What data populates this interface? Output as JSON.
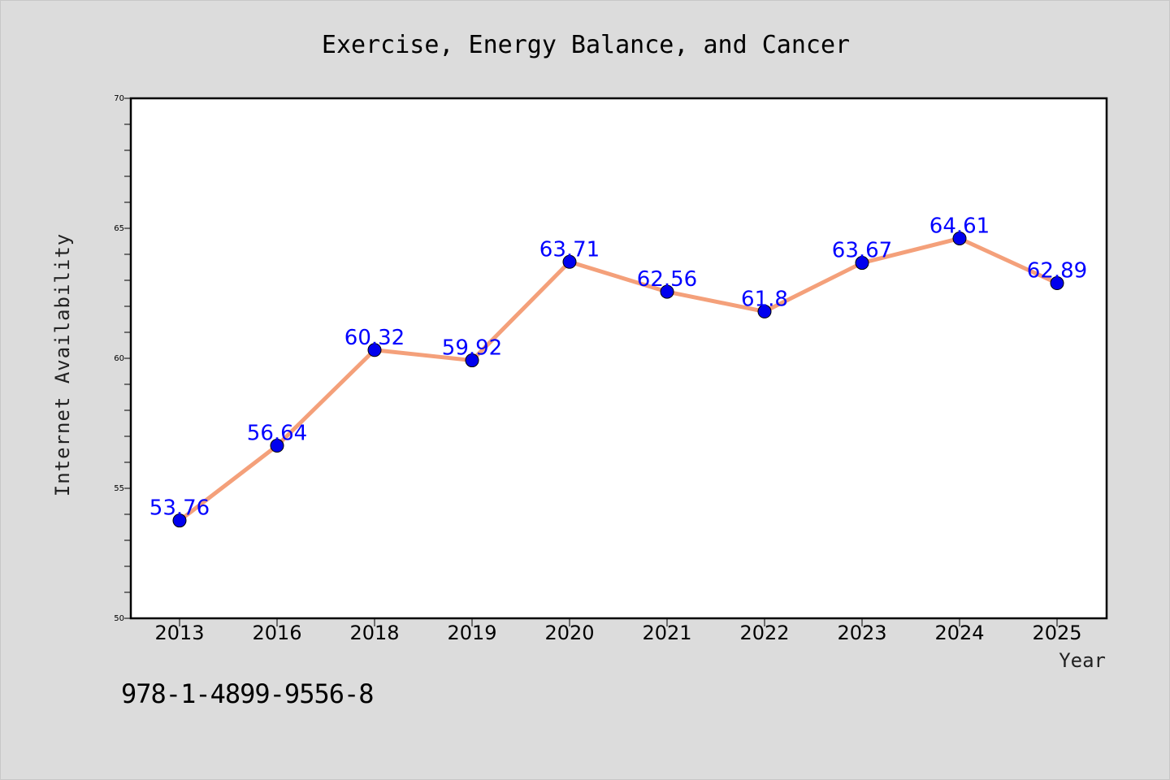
{
  "chart_data": {
    "type": "line",
    "title": "Exercise, Energy Balance, and Cancer",
    "xlabel": "Year",
    "ylabel": "Internet Availability",
    "categories": [
      "2013",
      "2016",
      "2018",
      "2019",
      "2020",
      "2021",
      "2022",
      "2023",
      "2024",
      "2025"
    ],
    "series": [
      {
        "values": [
          53.76,
          56.64,
          60.32,
          59.92,
          63.71,
          62.56,
          61.8,
          63.67,
          64.61,
          62.89
        ],
        "labels": [
          "53.76",
          "56.64",
          "60.32",
          "59.92",
          "63.71",
          "62.56",
          "61.8",
          "63.67",
          "64.61",
          "62.89"
        ],
        "line_color": "#f4a07a",
        "marker_color": "#0000ee"
      }
    ],
    "ylim": [
      50,
      70
    ],
    "yticks": [
      "50",
      "55",
      "60",
      "65",
      "70"
    ],
    "grid": false,
    "legend": "none"
  },
  "footer": {
    "isbn": "978-1-4899-9556-8"
  }
}
